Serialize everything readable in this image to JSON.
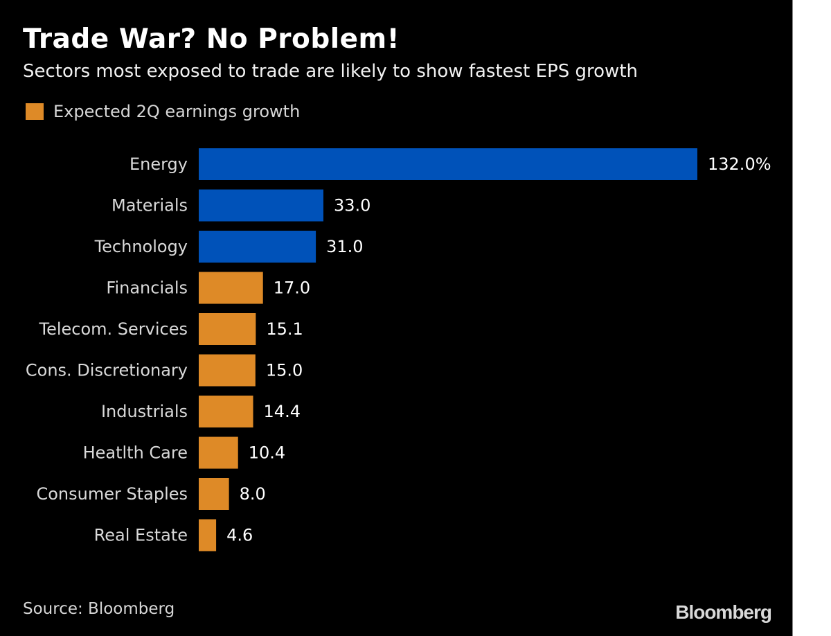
{
  "chart_data": {
    "type": "bar",
    "orientation": "horizontal",
    "title": "Trade War? No Problem!",
    "subtitle": "Sectors most exposed to trade are likely to show fastest EPS growth",
    "legend": [
      {
        "label": "Expected 2Q earnings growth",
        "color": "#DE8A27"
      }
    ],
    "legend_position": "top-left",
    "categories": [
      "Energy",
      "Materials",
      "Technology",
      "Financials",
      "Telecom. Services",
      "Cons. Discretionary",
      "Industrials",
      "Heatlth Care",
      "Consumer Staples",
      "Real Estate"
    ],
    "values": [
      132.0,
      33.0,
      31.0,
      17.0,
      15.1,
      15.0,
      14.4,
      10.4,
      8.0,
      4.6
    ],
    "value_labels": [
      "132.0%",
      "33.0",
      "31.0",
      "17.0",
      "15.1",
      "15.0",
      "14.4",
      "10.4",
      "8.0",
      "4.6"
    ],
    "bar_colors": [
      "#0052B9",
      "#0052B9",
      "#0052B9",
      "#DE8A27",
      "#DE8A27",
      "#DE8A27",
      "#DE8A27",
      "#DE8A27",
      "#DE8A27",
      "#DE8A27"
    ],
    "highlight_color": "#0052B9",
    "base_color": "#DE8A27",
    "xlabel": "",
    "ylabel": "",
    "xlim": [
      0,
      132
    ],
    "grid": false,
    "unit": "%"
  },
  "footer": {
    "source": "Source: Bloomberg",
    "logo": "Bloomberg"
  }
}
